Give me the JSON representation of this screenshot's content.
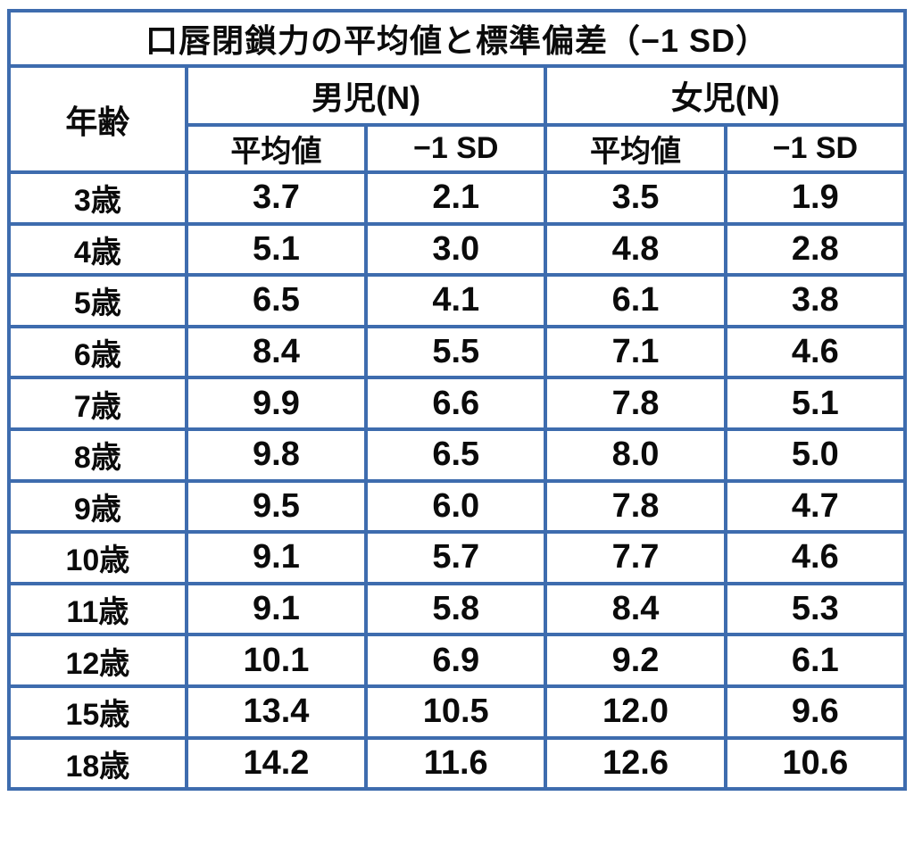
{
  "table": {
    "title": "口唇閉鎖力の平均値と標準偏差（−1 SD）",
    "headers": {
      "age": "年齢",
      "boys_group": "男児(N)",
      "girls_group": "女児(N)",
      "mean": "平均値",
      "minus_1sd": "−1 SD"
    },
    "rows": [
      {
        "age": "3歳",
        "values": [
          "3.7",
          "2.1",
          "3.5",
          "1.9"
        ]
      },
      {
        "age": "4歳",
        "values": [
          "5.1",
          "3.0",
          "4.8",
          "2.8"
        ]
      },
      {
        "age": "5歳",
        "values": [
          "6.5",
          "4.1",
          "6.1",
          "3.8"
        ]
      },
      {
        "age": "6歳",
        "values": [
          "8.4",
          "5.5",
          "7.1",
          "4.6"
        ]
      },
      {
        "age": "7歳",
        "values": [
          "9.9",
          "6.6",
          "7.8",
          "5.1"
        ]
      },
      {
        "age": "8歳",
        "values": [
          "9.8",
          "6.5",
          "8.0",
          "5.0"
        ]
      },
      {
        "age": "9歳",
        "values": [
          "9.5",
          "6.0",
          "7.8",
          "4.7"
        ]
      },
      {
        "age": "10歳",
        "values": [
          "9.1",
          "5.7",
          "7.7",
          "4.6"
        ]
      },
      {
        "age": "11歳",
        "values": [
          "9.1",
          "5.8",
          "8.4",
          "5.3"
        ]
      },
      {
        "age": "12歳",
        "values": [
          "10.1",
          "6.9",
          "9.2",
          "6.1"
        ]
      },
      {
        "age": "15歳",
        "values": [
          "13.4",
          "10.5",
          "12.0",
          "9.6"
        ]
      },
      {
        "age": "18歳",
        "values": [
          "14.2",
          "11.6",
          "12.6",
          "10.6"
        ]
      }
    ]
  },
  "colors": {
    "border_blue": "#3e6cae",
    "text": "#0b0b0b",
    "background": "#ffffff"
  },
  "chart_data": {
    "type": "table",
    "title": "口唇閉鎖力の平均値と標準偏差（−1 SD）",
    "columns": [
      "年齢",
      "男児(N) 平均値",
      "男児(N) −1 SD",
      "女児(N) 平均値",
      "女児(N) −1 SD"
    ],
    "rows": [
      [
        "3歳",
        3.7,
        2.1,
        3.5,
        1.9
      ],
      [
        "4歳",
        5.1,
        3.0,
        4.8,
        2.8
      ],
      [
        "5歳",
        6.5,
        4.1,
        6.1,
        3.8
      ],
      [
        "6歳",
        8.4,
        5.5,
        7.1,
        4.6
      ],
      [
        "7歳",
        9.9,
        6.6,
        7.8,
        5.1
      ],
      [
        "8歳",
        9.8,
        6.5,
        8.0,
        5.0
      ],
      [
        "9歳",
        9.5,
        6.0,
        7.8,
        4.7
      ],
      [
        "10歳",
        9.1,
        5.7,
        7.7,
        4.6
      ],
      [
        "11歳",
        9.1,
        5.8,
        8.4,
        5.3
      ],
      [
        "12歳",
        10.1,
        6.9,
        9.2,
        6.1
      ],
      [
        "15歳",
        13.4,
        10.5,
        12.0,
        9.6
      ],
      [
        "18歳",
        14.2,
        11.6,
        12.6,
        10.6
      ]
    ]
  }
}
